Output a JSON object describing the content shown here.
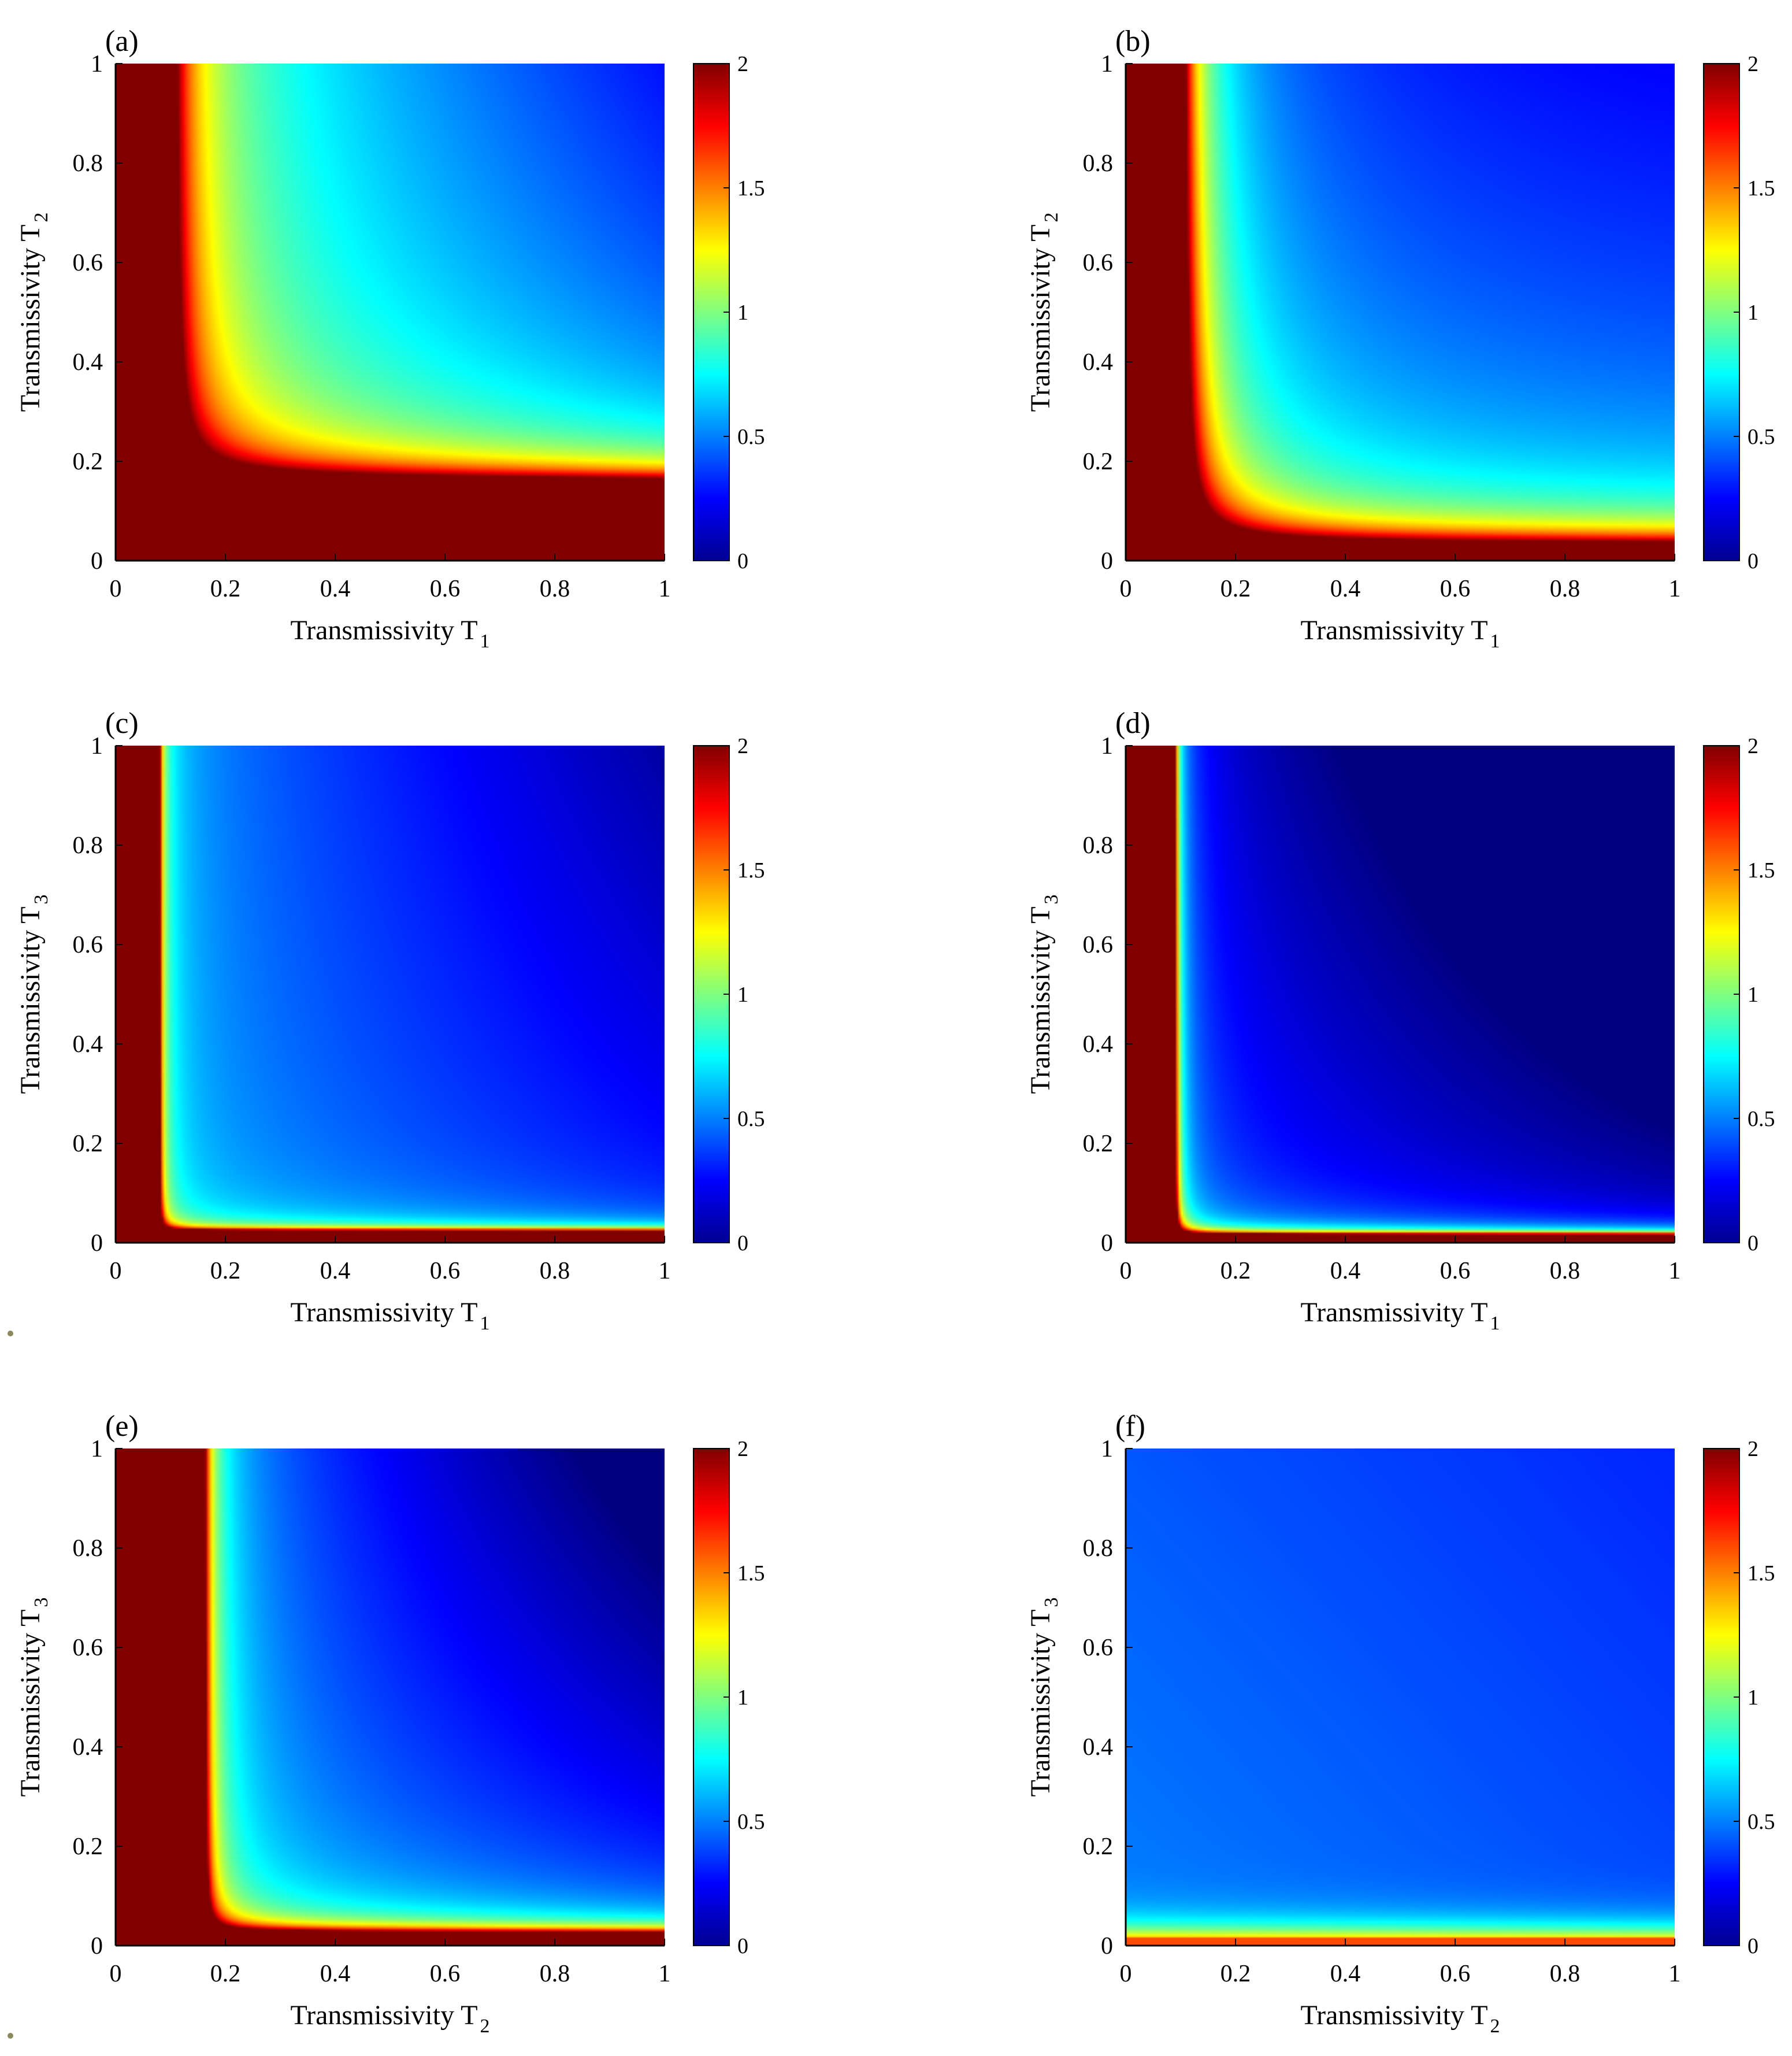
{
  "chart_data": [
    {
      "type": "heatmap",
      "panel_label": "(a)",
      "xlabel": "Transmissivity T",
      "xlabel_sub": "1",
      "ylabel": "Transmissivity T",
      "ylabel_sub": "2",
      "xlim": [
        0,
        1
      ],
      "ylim": [
        0,
        1
      ],
      "xticks": [
        "0",
        "0.2",
        "0.4",
        "0.6",
        "0.8",
        "1"
      ],
      "yticks": [
        "0",
        "0.2",
        "0.4",
        "0.6",
        "0.8",
        "1"
      ],
      "colorbar": {
        "range": [
          0,
          2
        ],
        "ticks": [
          "0",
          "0.5",
          "1",
          "1.5",
          "2"
        ],
        "colormap": "jet"
      },
      "model": {
        "a": 0.07,
        "b": 0.13,
        "c": 0.055,
        "p": 0.9,
        "d": 0.5,
        "e": 0.45,
        "g": 0.0,
        "floor": 0.65
      },
      "grid": false
    },
    {
      "type": "heatmap",
      "panel_label": "(b)",
      "xlabel": "Transmissivity T",
      "xlabel_sub": "1",
      "ylabel": "Transmissivity T",
      "ylabel_sub": "2",
      "xlim": [
        0,
        1
      ],
      "ylim": [
        0,
        1
      ],
      "xticks": [
        "0",
        "0.2",
        "0.4",
        "0.6",
        "0.8",
        "1"
      ],
      "yticks": [
        "0",
        "0.2",
        "0.4",
        "0.6",
        "0.8",
        "1"
      ],
      "colorbar": {
        "range": [
          0,
          2
        ],
        "ticks": [
          "0",
          "0.5",
          "1",
          "1.5",
          "2"
        ],
        "colormap": "jet"
      },
      "model": {
        "a": 0.075,
        "b": 0.0,
        "c": 0.06,
        "p": 0.9,
        "d": 0.0,
        "e": 0.38,
        "g": 0.18,
        "floor": 0.3
      },
      "grid": false
    },
    {
      "type": "heatmap",
      "panel_label": "(c)",
      "xlabel": "Transmissivity T",
      "xlabel_sub": "1",
      "ylabel": "Transmissivity T",
      "ylabel_sub": "3",
      "xlim": [
        0,
        1
      ],
      "ylim": [
        0,
        1
      ],
      "xticks": [
        "0",
        "0.2",
        "0.4",
        "0.6",
        "0.8",
        "1"
      ],
      "yticks": [
        "0",
        "0.2",
        "0.4",
        "0.6",
        "0.8",
        "1"
      ],
      "colorbar": {
        "range": [
          0,
          2
        ],
        "ticks": [
          "0",
          "0.5",
          "1",
          "1.5",
          "2"
        ],
        "colormap": "jet"
      },
      "model": {
        "a": 0.075,
        "b": 0.02,
        "c": 0.009,
        "p": 1.1,
        "d": 0.45,
        "e": 0.45,
        "g": 0.0,
        "floor": 0.5
      },
      "grid": false
    },
    {
      "type": "heatmap",
      "panel_label": "(d)",
      "xlabel": "Transmissivity T",
      "xlabel_sub": "1",
      "ylabel": "Transmissivity T",
      "ylabel_sub": "3",
      "xlim": [
        0,
        1
      ],
      "ylim": [
        0,
        1
      ],
      "xticks": [
        "0",
        "0.2",
        "0.4",
        "0.6",
        "0.8",
        "1"
      ],
      "yticks": [
        "0",
        "0.2",
        "0.4",
        "0.6",
        "0.8",
        "1"
      ],
      "colorbar": {
        "range": [
          0,
          2
        ],
        "ticks": [
          "0",
          "0.5",
          "1",
          "1.5",
          "2"
        ],
        "colormap": "jet"
      },
      "model": {
        "a": 0.085,
        "b": 0.012,
        "c": 0.011,
        "p": 1.05,
        "d": 0.5,
        "e": 0.55,
        "g": 0.1,
        "floor": 0.25
      },
      "grid": false
    },
    {
      "type": "heatmap",
      "panel_label": "(e)",
      "xlabel": "Transmissivity T",
      "xlabel_sub": "2",
      "ylabel": "Transmissivity T",
      "ylabel_sub": "3",
      "xlim": [
        0,
        1
      ],
      "ylim": [
        0,
        1
      ],
      "xticks": [
        "0",
        "0.2",
        "0.4",
        "0.6",
        "0.8",
        "1"
      ],
      "yticks": [
        "0",
        "0.2",
        "0.4",
        "0.6",
        "0.8",
        "1"
      ],
      "colorbar": {
        "range": [
          0,
          2
        ],
        "ticks": [
          "0",
          "0.5",
          "1",
          "1.5",
          "2"
        ],
        "colormap": "jet"
      },
      "model": {
        "a": 0.15,
        "b": 0.015,
        "c": 0.022,
        "p": 1.0,
        "d": 0.6,
        "e": 0.65,
        "g": 0.0,
        "floor": 0.45
      },
      "grid": false
    },
    {
      "type": "heatmap",
      "panel_label": "(f)",
      "xlabel": "Transmissivity T",
      "xlabel_sub": "2",
      "ylabel": "Transmissivity T",
      "ylabel_sub": "3",
      "xlim": [
        0,
        1
      ],
      "ylim": [
        0,
        1
      ],
      "xticks": [
        "0",
        "0.2",
        "0.4",
        "0.6",
        "0.8",
        "1"
      ],
      "yticks": [
        "0",
        "0.2",
        "0.4",
        "0.6",
        "0.8",
        "1"
      ],
      "colorbar": {
        "range": [
          0,
          2
        ],
        "ticks": [
          "0",
          "0.5",
          "1",
          "1.5",
          "2"
        ],
        "colormap": "jet"
      },
      "model": {
        "type": "band",
        "level": 1.32,
        "y0": 0.018,
        "decay": 0.03,
        "base": 0.5,
        "gx": 0.1,
        "gy": 0.08
      },
      "grid": false
    }
  ]
}
